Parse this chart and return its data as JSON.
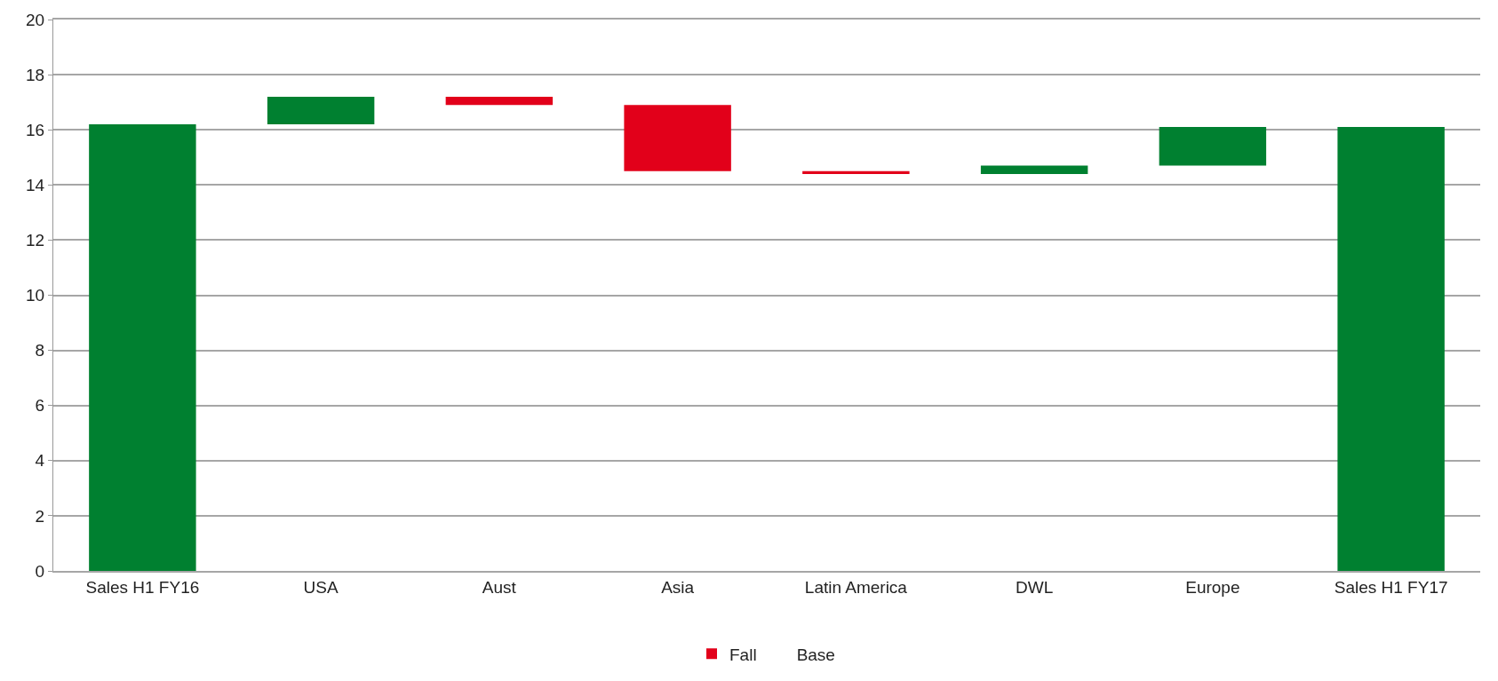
{
  "chart_data": {
    "type": "bar",
    "categories": [
      "Sales H1 FY16",
      "USA",
      "Aust",
      "Asia",
      "Latin America",
      "DWL",
      "Europe",
      "Sales H1 FY17"
    ],
    "series": [
      {
        "color": "#008030",
        "values": [
          16.2,
          1.0,
          null,
          null,
          null,
          0.3,
          1.4,
          16.1
        ],
        "base": [
          0,
          16.2,
          null,
          null,
          null,
          14.4,
          14.7,
          0
        ]
      },
      {
        "name": "Fall",
        "color": "#e2001a",
        "values": [
          null,
          null,
          0.3,
          2.4,
          0.1,
          null,
          null,
          null
        ],
        "base": [
          null,
          null,
          16.9,
          14.5,
          14.4,
          null,
          null,
          null
        ]
      },
      {
        "name": "Base",
        "values": [
          null,
          null,
          null,
          null,
          null,
          null,
          null,
          null
        ],
        "base": [
          null,
          null,
          null,
          null,
          null,
          null,
          null,
          null
        ]
      }
    ],
    "ylim": [
      0,
      20
    ],
    "yticks": [
      0,
      2,
      4,
      6,
      8,
      10,
      12,
      14,
      16,
      18,
      20
    ],
    "grid": "y",
    "legend": "bottom"
  }
}
